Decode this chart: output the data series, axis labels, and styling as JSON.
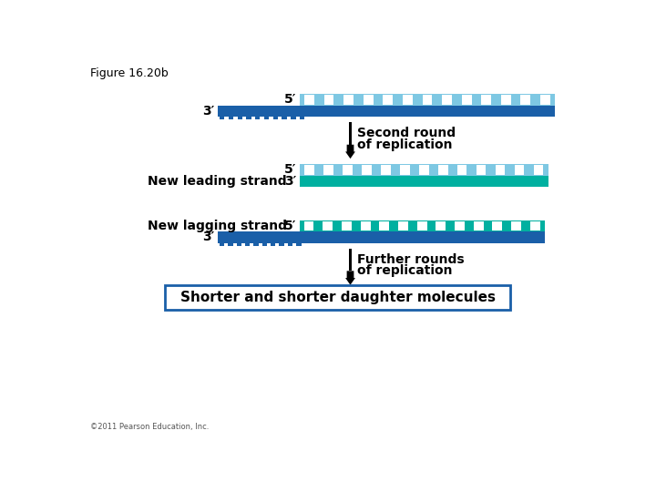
{
  "title": "Figure 16.20b",
  "bg_color": "#ffffff",
  "dark_blue": "#1a5fa8",
  "light_blue": "#7ec8e3",
  "teal": "#00b0a0",
  "text_color": "#000000",
  "strand1_5prime": "5′",
  "strand1_3prime": "3′",
  "strand2_5prime": "5′",
  "strand2_3prime": "3′",
  "strand3_5prime": "5′",
  "strand3_3prime": "3′",
  "second_round_text1": "Second round",
  "second_round_text2": "of replication",
  "further_rounds_text1": "Further rounds",
  "further_rounds_text2": "of replication",
  "new_leading_label": "New leading strand",
  "new_lagging_label": "New lagging strand",
  "bottom_box_text": "Shorter and shorter daughter molecules",
  "copyright": "©2011 Pearson Education, Inc."
}
